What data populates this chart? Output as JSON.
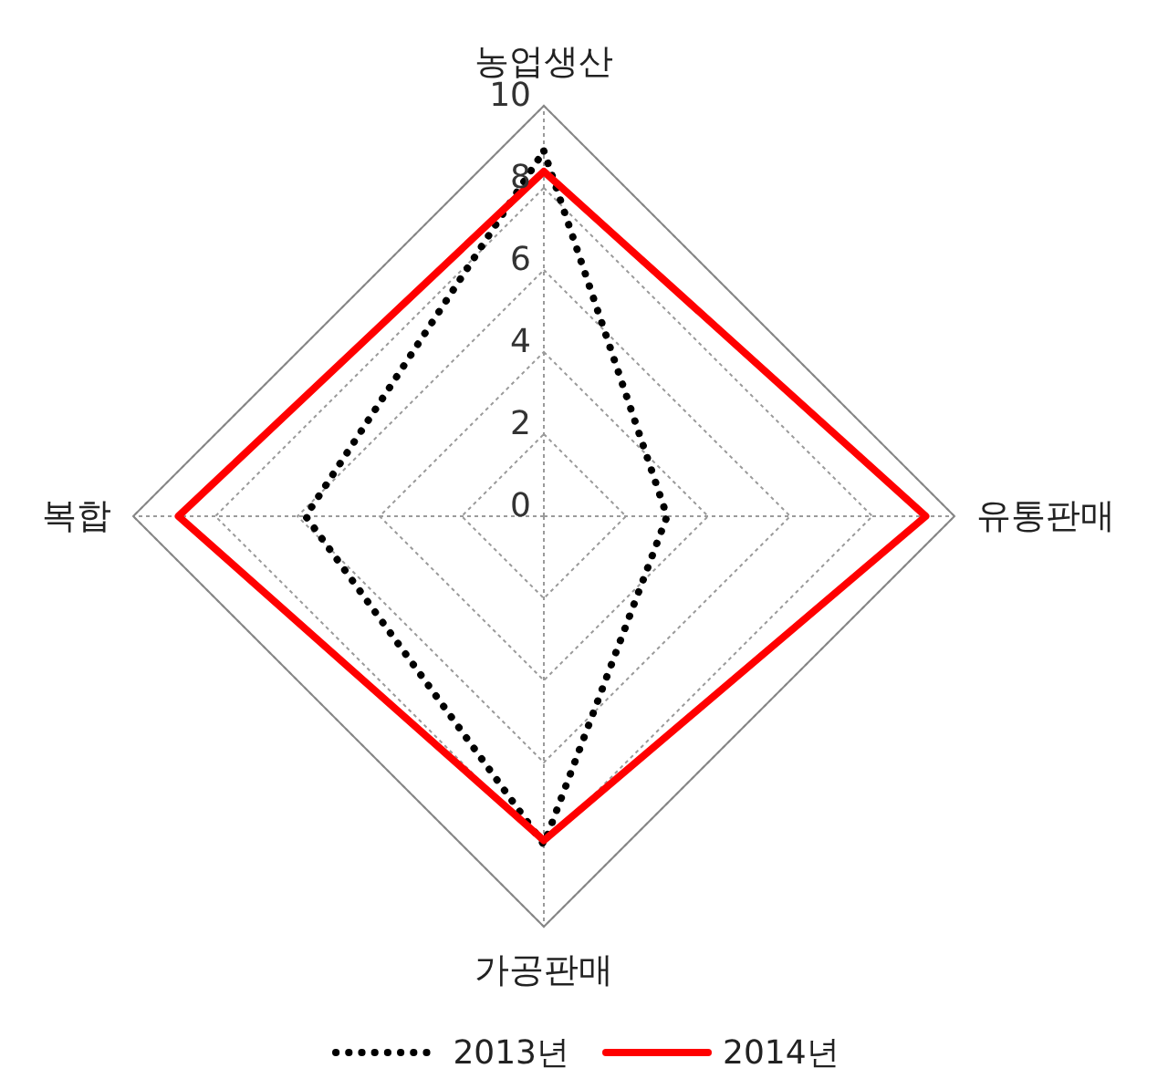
{
  "chart_data": {
    "type": "radar",
    "categories": [
      "농업생산",
      "유통판매",
      "가공판매",
      "복합"
    ],
    "series": [
      {
        "name": "2013년",
        "color": "#000000",
        "line_style": "dotted",
        "values": [
          8.9,
          3.0,
          8.0,
          5.8
        ]
      },
      {
        "name": "2014년",
        "color": "#ff0000",
        "line_style": "solid",
        "values": [
          8.4,
          9.3,
          7.9,
          8.9
        ]
      }
    ],
    "ylim": [
      0,
      10
    ],
    "yticks": [
      0,
      2,
      4,
      6,
      8,
      10
    ],
    "grid": true,
    "legend": "bottom",
    "marker": "none"
  }
}
